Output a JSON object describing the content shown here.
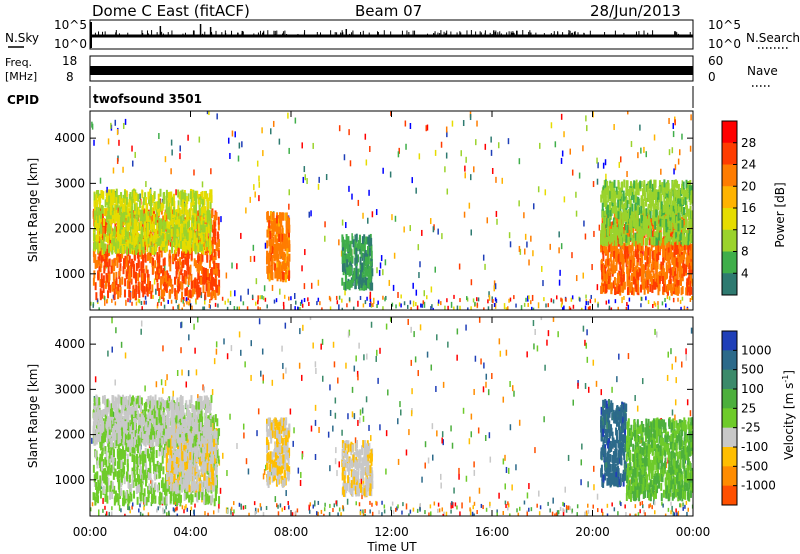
{
  "header": {
    "station": "Dome C East (fitACF)",
    "beam": "Beam 07",
    "date": "28/Jun/2013"
  },
  "noise_panel": {
    "left_label": "N.Sky",
    "left_ticks": [
      "10^5",
      "10^0"
    ],
    "right_label": "N.Search",
    "right_ticks": [
      "10^5",
      "10^0"
    ]
  },
  "freq_panel": {
    "left_label_line1": "Freq.",
    "left_label_line2": "[MHz]",
    "left_ticks": [
      "18",
      "8"
    ],
    "right_label": "Nave",
    "right_ticks": [
      "60",
      "0"
    ]
  },
  "cpid": {
    "label": "CPID",
    "value": "twofsound 3501"
  },
  "axes": {
    "xlabel": "Time UT",
    "x_ticks": [
      "00:00",
      "04:00",
      "08:00",
      "12:00",
      "16:00",
      "20:00",
      "00:00"
    ],
    "ylabel": "Slant Range [km]",
    "y_ticks": [
      "1000",
      "2000",
      "3000",
      "4000"
    ]
  },
  "power_colorbar": {
    "label": "Power [dB]",
    "ticks": [
      "28",
      "24",
      "20",
      "16",
      "12",
      "8",
      "4"
    ],
    "colors": [
      "#ff0000",
      "#ff3c00",
      "#ff7c00",
      "#ffb300",
      "#e6dc00",
      "#9bd32c",
      "#3fae4a",
      "#2e7a70",
      "#1f3fb8",
      "#0000ff"
    ]
  },
  "velocity_colorbar": {
    "label": "Velocity [m s^-1]",
    "ticks": [
      "1000",
      "500",
      "100",
      "25",
      "-25",
      "-100",
      "-500",
      "-1000"
    ],
    "colors": [
      "#1f3fb8",
      "#2c6a8a",
      "#3b8a6a",
      "#4caf3c",
      "#6ecb2a",
      "#c8c8c8",
      "#ffbe00",
      "#ff8c00",
      "#ff5000",
      "#ff0000"
    ]
  },
  "chart_data": [
    {
      "type": "heatmap",
      "title": "Power",
      "xlabel": "Time UT",
      "ylabel": "Slant Range [km]",
      "xlim": [
        0,
        24
      ],
      "ylim": [
        200,
        4600
      ],
      "colorbar": "Power [dB]",
      "clim": [
        0,
        32
      ],
      "regions": [
        {
          "t0": 0.1,
          "t1": 5.1,
          "r0": 500,
          "r1": 2400,
          "value": 26
        },
        {
          "t0": 0.1,
          "t1": 4.8,
          "r0": 1500,
          "r1": 2800,
          "value": 16
        },
        {
          "t0": 7.0,
          "t1": 7.9,
          "r0": 900,
          "r1": 2300,
          "value": 24
        },
        {
          "t0": 10.0,
          "t1": 11.2,
          "r0": 700,
          "r1": 1800,
          "value": 10
        },
        {
          "t0": 20.3,
          "t1": 24.0,
          "r0": 600,
          "r1": 2300,
          "value": 25
        },
        {
          "t0": 20.3,
          "t1": 24.0,
          "r0": 1700,
          "r1": 3000,
          "value": 14
        }
      ]
    },
    {
      "type": "heatmap",
      "title": "Velocity",
      "xlabel": "Time UT",
      "ylabel": "Slant Range [km]",
      "xlim": [
        0,
        24
      ],
      "ylim": [
        200,
        4600
      ],
      "colorbar": "Velocity [m s^-1]",
      "clim": [
        -1000,
        1000
      ],
      "regions": [
        {
          "t0": 0.1,
          "t1": 5.1,
          "r0": 500,
          "r1": 2400,
          "value": 60
        },
        {
          "t0": 3.0,
          "t1": 5.0,
          "r0": 800,
          "r1": 2200,
          "value": -150
        },
        {
          "t0": 0.1,
          "t1": 4.8,
          "r0": 1800,
          "r1": 2800,
          "value": -60
        },
        {
          "t0": 7.0,
          "t1": 7.9,
          "r0": 900,
          "r1": 2300,
          "value": -200
        },
        {
          "t0": 10.0,
          "t1": 11.2,
          "r0": 700,
          "r1": 1800,
          "value": -150
        },
        {
          "t0": 20.3,
          "t1": 21.3,
          "r0": 900,
          "r1": 2700,
          "value": 700
        },
        {
          "t0": 21.3,
          "t1": 24.0,
          "r0": 600,
          "r1": 2300,
          "value": 200
        }
      ]
    }
  ]
}
